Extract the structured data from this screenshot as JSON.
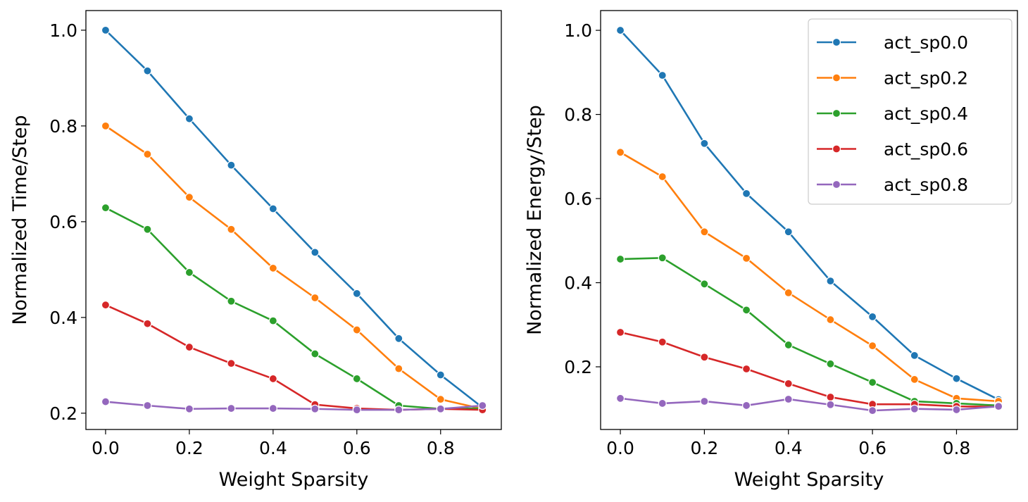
{
  "chart_data": [
    {
      "type": "line",
      "xlabel": "Weight Sparsity",
      "ylabel": "Normalized Time/Step",
      "xlim": [
        -0.047,
        0.945
      ],
      "ylim": [
        0.166,
        1.041
      ],
      "xticks": [
        "0.0",
        "0.2",
        "0.4",
        "0.6",
        "0.8"
      ],
      "yticks": [
        "0.2",
        "0.4",
        "0.6",
        "0.8",
        "1.0"
      ],
      "grid": false,
      "x": [
        0.0,
        0.1,
        0.2,
        0.3,
        0.4,
        0.5,
        0.6,
        0.7,
        0.8,
        0.9
      ],
      "series": [
        {
          "name": "act_sp0.0",
          "color": "#1f77b4",
          "values": [
            1.0,
            0.915,
            0.815,
            0.718,
            0.627,
            0.536,
            0.45,
            0.356,
            0.28,
            0.212
          ]
        },
        {
          "name": "act_sp0.2",
          "color": "#ff7f0e",
          "values": [
            0.8,
            0.741,
            0.651,
            0.584,
            0.503,
            0.441,
            0.374,
            0.293,
            0.229,
            0.209
          ]
        },
        {
          "name": "act_sp0.4",
          "color": "#2ca02c",
          "values": [
            0.629,
            0.584,
            0.494,
            0.434,
            0.393,
            0.324,
            0.272,
            0.216,
            0.209,
            0.21
          ]
        },
        {
          "name": "act_sp0.6",
          "color": "#d62728",
          "values": [
            0.426,
            0.387,
            0.338,
            0.304,
            0.272,
            0.218,
            0.21,
            0.207,
            0.209,
            0.207
          ]
        },
        {
          "name": "act_sp0.8",
          "color": "#9467bd",
          "values": [
            0.224,
            0.216,
            0.209,
            0.21,
            0.21,
            0.209,
            0.207,
            0.207,
            0.209,
            0.216
          ]
        }
      ]
    },
    {
      "type": "line",
      "xlabel": "Weight Sparsity",
      "ylabel": "Normalized Energy/Step",
      "xlim": [
        -0.047,
        0.945
      ],
      "ylim": [
        0.051,
        1.047
      ],
      "xticks": [
        "0.0",
        "0.2",
        "0.4",
        "0.6",
        "0.8"
      ],
      "yticks": [
        "0.2",
        "0.4",
        "0.6",
        "0.8",
        "1.0"
      ],
      "grid": false,
      "legend": "top-right",
      "x": [
        0.0,
        0.1,
        0.2,
        0.3,
        0.4,
        0.5,
        0.6,
        0.7,
        0.8,
        0.9
      ],
      "series": [
        {
          "name": "act_sp0.0",
          "color": "#1f77b4",
          "values": [
            1.0,
            0.893,
            0.731,
            0.612,
            0.521,
            0.404,
            0.319,
            0.227,
            0.172,
            0.122
          ]
        },
        {
          "name": "act_sp0.2",
          "color": "#ff7f0e",
          "values": [
            0.71,
            0.652,
            0.521,
            0.458,
            0.376,
            0.312,
            0.25,
            0.17,
            0.125,
            0.118
          ]
        },
        {
          "name": "act_sp0.4",
          "color": "#2ca02c",
          "values": [
            0.456,
            0.459,
            0.397,
            0.335,
            0.252,
            0.207,
            0.163,
            0.118,
            0.113,
            0.108
          ]
        },
        {
          "name": "act_sp0.6",
          "color": "#d62728",
          "values": [
            0.282,
            0.259,
            0.223,
            0.195,
            0.16,
            0.128,
            0.111,
            0.111,
            0.106,
            0.105
          ]
        },
        {
          "name": "act_sp0.8",
          "color": "#9467bd",
          "values": [
            0.125,
            0.113,
            0.118,
            0.108,
            0.123,
            0.11,
            0.096,
            0.1,
            0.098,
            0.106
          ]
        }
      ]
    }
  ]
}
